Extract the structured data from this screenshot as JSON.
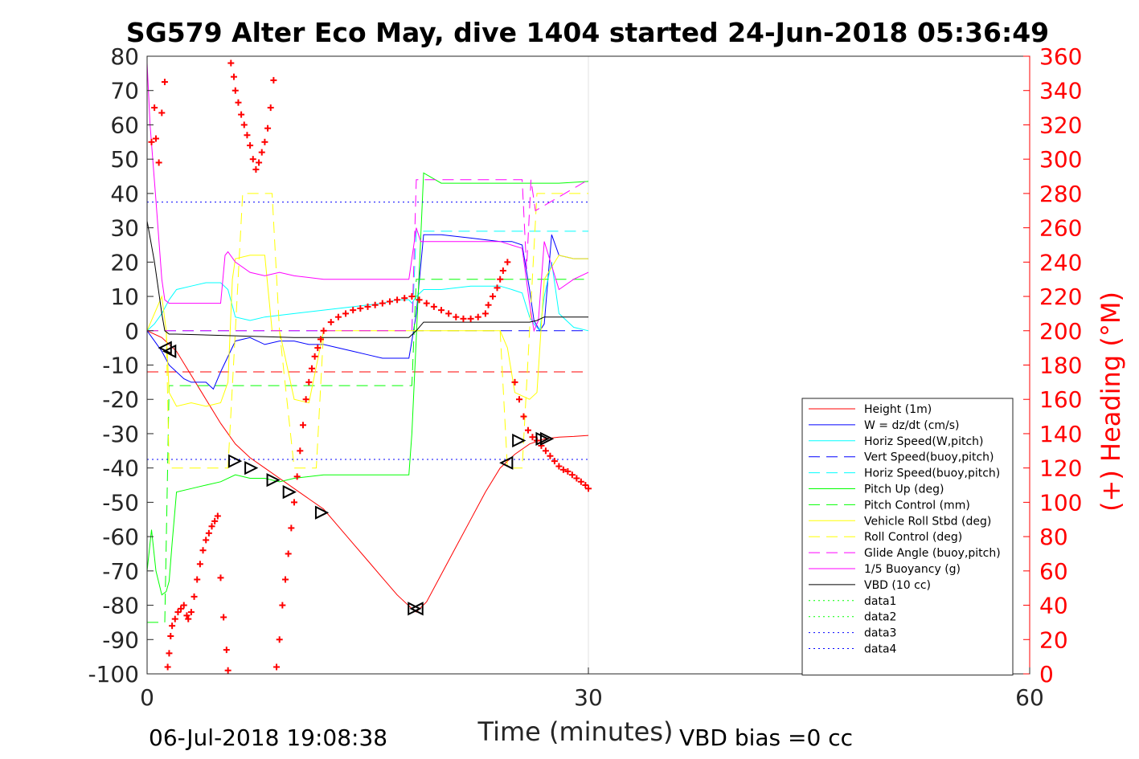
{
  "chart_data": {
    "type": "line",
    "title": "SG579 Alter Eco May, dive 1404 started 24-Jun-2018 05:36:49",
    "xlabel": "Time (minutes)",
    "ylabel_right": "(+) Heading (°M)",
    "xlim": [
      0,
      60
    ],
    "ylim_left": [
      -100,
      80
    ],
    "ylim_right": [
      0,
      360
    ],
    "xticks": [
      "0",
      "30",
      "60"
    ],
    "yticks_left": [
      "80",
      "70",
      "60",
      "50",
      "40",
      "30",
      "20",
      "10",
      "0",
      "-10",
      "-20",
      "-30",
      "-40",
      "-50",
      "-60",
      "-70",
      "-80",
      "-90",
      "-100"
    ],
    "yticks_right": [
      "360",
      "340",
      "320",
      "300",
      "280",
      "260",
      "240",
      "220",
      "200",
      "180",
      "160",
      "140",
      "120",
      "100",
      "80",
      "60",
      "40",
      "20",
      "0"
    ],
    "grid": "x-only",
    "legend_position": "right",
    "footer_left": "06-Jul-2018 19:08:38",
    "footer_right": "VBD bias =0 cc",
    "series": [
      {
        "name": "Height (1m)",
        "color": "#ff0000",
        "style": "solid",
        "x": [
          0,
          1,
          2,
          3,
          4,
          5,
          6,
          7,
          8,
          9,
          10,
          11,
          12,
          13,
          14,
          15,
          16,
          17,
          18,
          18.3,
          19,
          20,
          21,
          22,
          23,
          24,
          25,
          26,
          27,
          28,
          29,
          30
        ],
        "y": [
          0,
          -2,
          -6,
          -13,
          -20,
          -27,
          -33,
          -37,
          -40,
          -43,
          -46,
          -49,
          -52,
          -57,
          -62,
          -67,
          -72,
          -77,
          -81,
          -82,
          -79,
          -71,
          -63,
          -55,
          -47,
          -40,
          -36,
          -33,
          -31.5,
          -31,
          -30.8,
          -30.5
        ]
      },
      {
        "name": "W = dz/dt (cm/s)",
        "color": "#0000ff",
        "style": "solid",
        "x": [
          0,
          0.5,
          1,
          1.5,
          2,
          2.5,
          3,
          4,
          4.5,
          5,
          6,
          7,
          8,
          9,
          10,
          11,
          12,
          13,
          14,
          15,
          16,
          17,
          17.8,
          18,
          18.3,
          18.8,
          20,
          22,
          24,
          24.8,
          25.5,
          26,
          26.3,
          26.7,
          27,
          27.5,
          28,
          29,
          30
        ],
        "y": [
          0,
          -3,
          -6,
          -10,
          -12,
          -14,
          -15,
          -15,
          -17,
          -12,
          -3,
          -2,
          -4,
          -3,
          -3,
          -4,
          -4,
          -5,
          -6,
          -7,
          -8,
          -8,
          -8,
          -3,
          5,
          28,
          28,
          27,
          26,
          26,
          25,
          12,
          3,
          0,
          2,
          28,
          22,
          21,
          21
        ]
      },
      {
        "name": "Horiz Speed(W,pitch)",
        "color": "#00ffff",
        "style": "solid",
        "x": [
          0,
          0.5,
          1,
          1.5,
          2,
          3,
          4,
          5,
          5.5,
          6,
          7,
          8,
          10,
          12,
          14,
          16,
          17,
          17.8,
          18,
          18.3,
          18.8,
          20,
          22,
          24,
          24.8,
          25.5,
          26,
          26.3,
          26.7,
          27,
          27.5,
          28,
          29,
          30
        ],
        "y": [
          0,
          2,
          5,
          9,
          12,
          13,
          14,
          14,
          12,
          4,
          3,
          4,
          5,
          6,
          7,
          8,
          9,
          9,
          8,
          10,
          12,
          12,
          13,
          13,
          12,
          11,
          4,
          2,
          0,
          10,
          20,
          5,
          1,
          0
        ]
      },
      {
        "name": "Vert Speed(buoy,pitch)",
        "color": "#0000ff",
        "style": "dashed",
        "x": [
          0,
          30
        ],
        "y": [
          0,
          0
        ]
      },
      {
        "name": "Horiz Speed(buoy,pitch)",
        "color": "#00ffff",
        "style": "dashed",
        "x": [
          0,
          18,
          18.3,
          30
        ],
        "y": [
          0,
          0,
          29,
          29
        ]
      },
      {
        "name": "Pitch Up (deg)",
        "color": "#00ff00",
        "style": "solid",
        "x": [
          0,
          0.3,
          0.6,
          1,
          1.3,
          1.5,
          1.7,
          2,
          3,
          4,
          5,
          6,
          7,
          8,
          9,
          10,
          12,
          14,
          16,
          17,
          17.8,
          18,
          18.3,
          18.8,
          20,
          22,
          24,
          26,
          28,
          30
        ],
        "y": [
          -70,
          -58,
          -70,
          -77,
          -76,
          -73,
          -62,
          -47,
          -46,
          -45,
          -44,
          -42,
          -43,
          -43,
          -44,
          -43,
          -42,
          -42,
          -42,
          -42,
          -42,
          -30,
          -2,
          46,
          43,
          43,
          43,
          43,
          43,
          43.5
        ]
      },
      {
        "name": "Pitch Control (mm)",
        "color": "#00ff00",
        "style": "dashed",
        "x": [
          0,
          1.2,
          1.5,
          6,
          18,
          18.3,
          30
        ],
        "y": [
          -85,
          -85,
          -16,
          -16,
          -16,
          15,
          15
        ]
      },
      {
        "name": "Vehicle Roll Stbd (deg)",
        "color": "#ffff00",
        "style": "solid",
        "x": [
          0,
          1,
          1.3,
          1.5,
          2,
          3,
          4,
          5,
          5.5,
          5.8,
          6,
          7,
          8,
          8.5,
          9,
          10,
          11,
          12,
          13,
          16,
          18,
          20,
          22,
          24,
          24.5,
          25,
          26,
          26.5,
          27,
          28,
          29,
          30
        ],
        "y": [
          0,
          10,
          0,
          -18,
          -22,
          -21,
          -22,
          -21,
          -15,
          15,
          21,
          22,
          22,
          0,
          0,
          -20,
          -21,
          0,
          0,
          0,
          0,
          0,
          0,
          0,
          -5,
          -18,
          -20,
          -18,
          15,
          22,
          21,
          21
        ]
      },
      {
        "name": "Roll Control (deg)",
        "color": "#ffff00",
        "style": "dashed",
        "x": [
          0,
          1.3,
          1.5,
          5.5,
          6,
          6.5,
          8.5,
          9,
          10,
          11.5,
          12,
          24,
          24.5,
          25.5,
          26,
          26.5,
          30
        ],
        "y": [
          0,
          0,
          -40,
          -40,
          0,
          40,
          40,
          0,
          -40,
          -40,
          0,
          0,
          -40,
          -40,
          0,
          40,
          40
        ]
      },
      {
        "name": "Glide Angle (buoy,pitch)",
        "color": "#ff00ff",
        "style": "dashed",
        "x": [
          0,
          18,
          18.3,
          25.5,
          25.8,
          26.1,
          26.4,
          30
        ],
        "y": [
          0,
          0,
          44,
          44,
          18,
          44,
          35,
          44
        ]
      },
      {
        "name": "1/5 Buoyancy (g)",
        "color": "#ff00ff",
        "style": "solid",
        "x": [
          0,
          0.2,
          0.6,
          1,
          1.2,
          1.5,
          2,
          3,
          4,
          5,
          5.3,
          5.5,
          6,
          7,
          8,
          9,
          10,
          12,
          14,
          16,
          17,
          17.8,
          18.3,
          18.6,
          19,
          20,
          22,
          24,
          25.5,
          26,
          26.3,
          26.6,
          27,
          28,
          29,
          30
        ],
        "y": [
          78,
          60,
          38,
          15,
          9,
          8,
          8,
          8,
          8,
          8,
          22,
          23,
          20,
          17,
          16,
          17,
          16,
          15,
          15,
          15,
          15,
          15,
          30,
          26,
          26,
          26,
          26,
          26,
          24,
          8,
          0,
          3,
          26,
          12,
          15,
          17
        ]
      },
      {
        "name": "VBD (10 cc)",
        "color": "#000000",
        "style": "solid",
        "x": [
          0,
          0.5,
          1,
          1.2,
          1.5,
          2,
          10,
          17.8,
          18.3,
          18.8,
          26,
          26.5,
          27,
          30
        ],
        "y": [
          32,
          20,
          5,
          0,
          -1,
          -1,
          -2,
          -2,
          0,
          2.5,
          2.5,
          3,
          4,
          4
        ]
      },
      {
        "name": "data1",
        "color": "#00ff00",
        "style": "dotted",
        "x": [],
        "y": []
      },
      {
        "name": "data2",
        "color": "#00ff00",
        "style": "dotted",
        "x": [],
        "y": []
      },
      {
        "name": "data3",
        "color": "#0000ff",
        "style": "dotted",
        "x": [
          0,
          30
        ],
        "y": [
          37.5,
          37.5
        ]
      },
      {
        "name": "data4",
        "color": "#0000ff",
        "style": "dotted",
        "x": [
          0,
          30
        ],
        "y": [
          -37.5,
          -37.5
        ]
      }
    ],
    "reference_lines": [
      {
        "color": "#ff0000",
        "style": "dashed",
        "y": -12,
        "x": [
          0,
          30
        ]
      }
    ],
    "heading_points": {
      "axis": "right",
      "color": "#ff0000",
      "marker": "+",
      "x": [
        0.3,
        0.5,
        0.6,
        0.8,
        1.0,
        1.2,
        1.4,
        1.5,
        1.6,
        1.7,
        1.9,
        2.1,
        2.3,
        2.5,
        2.7,
        2.8,
        3.0,
        3.2,
        3.4,
        3.6,
        3.8,
        4.0,
        4.2,
        4.4,
        4.6,
        4.8,
        5.0,
        5.2,
        5.4,
        5.5,
        5.7,
        5.9,
        6.0,
        6.2,
        6.4,
        6.6,
        6.8,
        7.0,
        7.2,
        7.4,
        7.6,
        7.8,
        8.0,
        8.2,
        8.4,
        8.6,
        8.8,
        9.0,
        9.2,
        9.4,
        9.6,
        9.8,
        10.0,
        10.2,
        10.4,
        10.6,
        10.8,
        11.0,
        11.2,
        11.4,
        11.6,
        11.8,
        12,
        12.5,
        13,
        13.5,
        14,
        14.5,
        15,
        15.5,
        16,
        16.5,
        17,
        17.5,
        18,
        18.5,
        19,
        19.5,
        20,
        20.5,
        21,
        21.5,
        22,
        22.5,
        23,
        23.2,
        23.5,
        23.8,
        24.0,
        24.2,
        24.5,
        25.0,
        25.3,
        25.6,
        25.9,
        26.2,
        26.5,
        26.8,
        27.1,
        27.4,
        27.7,
        28.0,
        28.3,
        28.6,
        28.9,
        29.2,
        29.5,
        29.8,
        30.0
      ],
      "y": [
        310,
        330,
        312,
        298,
        327,
        345,
        4,
        12,
        22,
        28,
        32,
        36,
        38,
        40,
        34,
        32,
        36,
        45,
        55,
        64,
        72,
        78,
        82,
        86,
        89,
        92,
        56,
        33,
        14,
        2,
        356,
        348,
        340,
        333,
        326,
        320,
        314,
        308,
        300,
        294,
        298,
        304,
        310,
        318,
        330,
        346,
        4,
        20,
        40,
        55,
        70,
        85,
        100,
        115,
        130,
        145,
        160,
        170,
        178,
        185,
        190,
        195,
        200,
        205,
        208,
        210,
        212,
        213,
        214,
        215,
        216,
        217,
        218,
        219,
        220,
        218,
        216,
        214,
        212,
        210,
        208,
        207,
        207,
        208,
        210,
        215,
        220,
        225,
        230,
        235,
        240,
        170,
        160,
        150,
        142,
        138,
        136,
        133,
        130,
        127,
        124,
        121,
        119,
        118,
        116,
        114,
        112,
        110,
        108
      ]
    },
    "glider_markers": {
      "color": "#000000",
      "x": [
        1.3,
        1.6,
        5.9,
        7.0,
        8.5,
        9.6,
        11.8,
        18.1,
        18.4,
        24.5,
        25.2,
        26.8,
        27.1
      ],
      "y": [
        -5,
        -6,
        -38,
        -40,
        -43.5,
        -47,
        -53,
        -81,
        -81,
        -38.5,
        -32,
        -31.5,
        -31.5
      ],
      "dir": [
        "left",
        "left",
        "right",
        "right",
        "right",
        "right",
        "right",
        "right",
        "left",
        "left",
        "right",
        "right",
        "right"
      ]
    }
  }
}
